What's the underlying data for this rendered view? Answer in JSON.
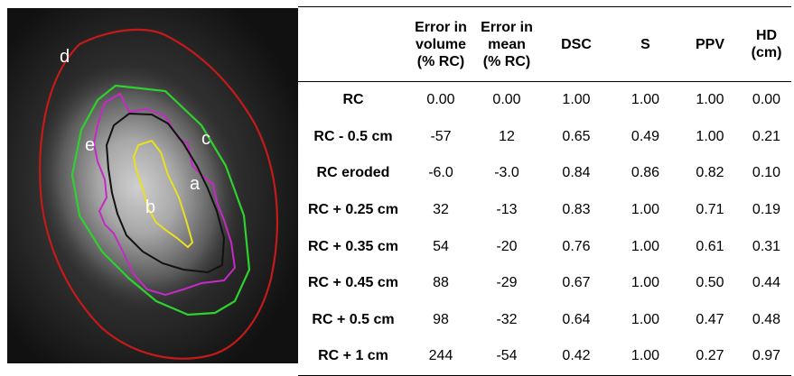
{
  "figure": {
    "contour_labels": [
      "d",
      "e",
      "c",
      "a",
      "b"
    ],
    "contour_colors": {
      "d": "#c41a1a",
      "c": "#2fd12f",
      "a": "#111111",
      "e": "#c42ac4",
      "b": "#e8e020"
    }
  },
  "table": {
    "headers": [
      [
        ""
      ],
      [
        "Error in",
        "volume",
        "(% RC)"
      ],
      [
        "Error in",
        "mean",
        "(% RC)"
      ],
      [
        "DSC"
      ],
      [
        "S"
      ],
      [
        "PPV"
      ],
      [
        "HD",
        "(cm)"
      ]
    ],
    "rows": [
      [
        "RC",
        "0.00",
        "0.00",
        "1.00",
        "1.00",
        "1.00",
        "0.00"
      ],
      [
        "RC - 0.5 cm",
        "-57",
        "12",
        "0.65",
        "0.49",
        "1.00",
        "0.21"
      ],
      [
        "RC eroded",
        "-6.0",
        "-3.0",
        "0.84",
        "0.86",
        "0.82",
        "0.10"
      ],
      [
        "RC + 0.25 cm",
        "32",
        "-13",
        "0.83",
        "1.00",
        "0.71",
        "0.19"
      ],
      [
        "RC + 0.35 cm",
        "54",
        "-20",
        "0.76",
        "1.00",
        "0.61",
        "0.31"
      ],
      [
        "RC + 0.45 cm",
        "88",
        "-29",
        "0.67",
        "1.00",
        "0.50",
        "0.44"
      ],
      [
        "RC + 0.5 cm",
        "98",
        "-32",
        "0.64",
        "1.00",
        "0.47",
        "0.48"
      ],
      [
        "RC + 1 cm",
        "244",
        "-54",
        "0.42",
        "1.00",
        "0.27",
        "0.97"
      ]
    ]
  }
}
